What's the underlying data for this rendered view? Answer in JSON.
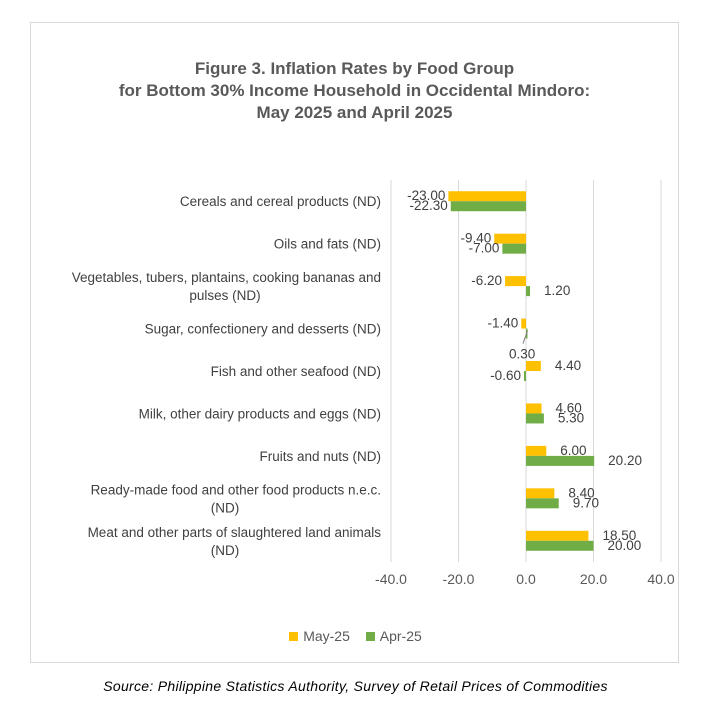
{
  "chart_data": {
    "type": "bar",
    "orientation": "horizontal",
    "title": [
      "Figure 3. Inflation Rates by Food Group",
      "for Bottom 30% Income Household in  Occidental Mindoro:",
      "May 2025 and April 2025"
    ],
    "categories": [
      [
        "Cereals and cereal products (ND)"
      ],
      [
        "Oils and fats (ND)"
      ],
      [
        "Vegetables, tubers, plantains, cooking bananas and",
        "pulses (ND)"
      ],
      [
        "Sugar, confectionery and desserts (ND)"
      ],
      [
        "Fish and other seafood (ND)"
      ],
      [
        "Milk, other dairy products and eggs (ND)"
      ],
      [
        "Fruits and nuts (ND)"
      ],
      [
        "Ready-made food and other food products n.e.c.",
        "(ND)"
      ],
      [
        "Meat and other parts of slaughtered land animals",
        "(ND)"
      ]
    ],
    "series": [
      {
        "name": "May-25",
        "color": "#FFC000",
        "values": [
          -23.0,
          -9.4,
          -6.2,
          -1.4,
          4.4,
          4.6,
          6.0,
          8.4,
          18.5
        ],
        "labels": [
          "-23.00",
          "-9.40",
          "-6.20",
          "-1.40",
          "4.40",
          "4.60",
          "6.00",
          "8.40",
          "18.50"
        ]
      },
      {
        "name": "Apr-25",
        "color": "#70AD47",
        "values": [
          -22.3,
          -7.0,
          1.2,
          0.3,
          -0.6,
          5.3,
          20.2,
          9.7,
          20.0
        ],
        "labels": [
          "-22.30",
          "-7.00",
          "1.20",
          "0.30",
          "-0.60",
          "5.30",
          "20.20",
          "9.70",
          "20.00"
        ]
      }
    ],
    "xlim": [
      -40,
      40
    ],
    "xticks": [
      "-40.0",
      "-20.0",
      "0.0",
      "20.0",
      "40.0"
    ],
    "xtick_values": [
      -40,
      -20,
      0,
      20,
      40
    ],
    "grid": true,
    "legend_position": "bottom"
  },
  "source": "Source: Philippine Statistics Authority, Survey of Retail Prices of Commodities"
}
